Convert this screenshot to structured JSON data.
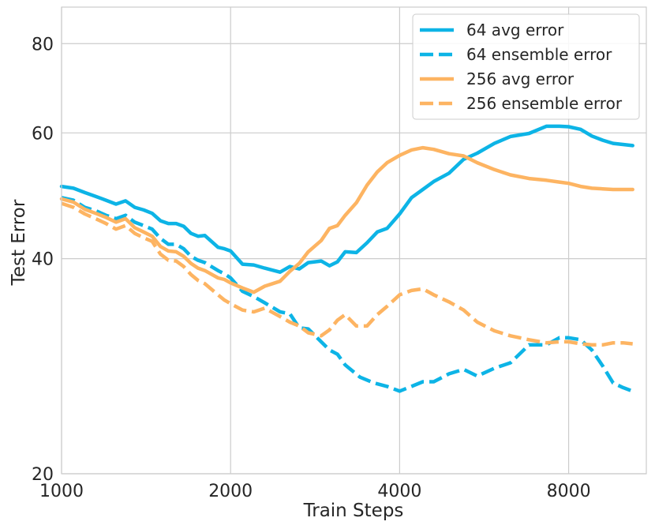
{
  "chart_data": {
    "type": "line",
    "xscale": "log",
    "yscale": "log",
    "xlabel": "Train Steps",
    "ylabel": "Test Error",
    "xlim": [
      1000,
      11000
    ],
    "ylim": [
      20,
      90
    ],
    "xticks": [
      1000,
      2000,
      4000,
      8000
    ],
    "xtick_labels": [
      "1000",
      "2000",
      "4000",
      "8000"
    ],
    "yticks": [
      20,
      40,
      60,
      80
    ],
    "ytick_labels": [
      "20",
      "40",
      "60",
      "80"
    ],
    "grid": true,
    "legend_position": "top-right",
    "series": [
      {
        "name": "64 avg error",
        "color": "#0db4e6",
        "style": "solid",
        "x": [
          1000,
          1050,
          1100,
          1150,
          1200,
          1250,
          1300,
          1350,
          1400,
          1450,
          1500,
          1550,
          1600,
          1650,
          1700,
          1750,
          1800,
          1900,
          1950,
          2000,
          2100,
          2200,
          2300,
          2450,
          2550,
          2650,
          2750,
          2900,
          3000,
          3100,
          3200,
          3350,
          3500,
          3650,
          3800,
          4000,
          4200,
          4400,
          4600,
          4900,
          5200,
          5500,
          5900,
          6300,
          6800,
          7300,
          7700,
          8000,
          8400,
          8800,
          9200,
          9600,
          10000,
          10400
        ],
        "y": [
          50.5,
          50.2,
          49.5,
          48.9,
          48.3,
          47.7,
          48.2,
          47.2,
          46.8,
          46.3,
          45.2,
          44.8,
          44.8,
          44.4,
          43.4,
          43.0,
          43.1,
          41.5,
          41.3,
          41.0,
          39.3,
          39.2,
          38.8,
          38.3,
          39.0,
          38.7,
          39.5,
          39.7,
          39.1,
          39.6,
          40.9,
          40.8,
          42.1,
          43.6,
          44.1,
          46.2,
          48.7,
          50.0,
          51.3,
          52.7,
          55.1,
          56.2,
          58.0,
          59.3,
          59.9,
          61.3,
          61.3,
          61.2,
          60.7,
          59.4,
          58.6,
          58.0,
          57.8,
          57.6
        ]
      },
      {
        "name": "64 ensemble error",
        "color": "#0db4e6",
        "style": "dashed",
        "x": [
          1000,
          1050,
          1100,
          1150,
          1200,
          1250,
          1300,
          1350,
          1400,
          1450,
          1500,
          1550,
          1600,
          1650,
          1700,
          1750,
          1800,
          1900,
          1950,
          2000,
          2100,
          2200,
          2300,
          2450,
          2550,
          2650,
          2750,
          2900,
          3000,
          3100,
          3200,
          3400,
          3600,
          3800,
          4000,
          4200,
          4400,
          4600,
          4900,
          5200,
          5500,
          5900,
          6300,
          6800,
          7300,
          7700,
          8000,
          8400,
          8800,
          9200,
          9600,
          10000,
          10400
        ],
        "y": [
          48.7,
          48.3,
          47.2,
          46.7,
          46.0,
          45.5,
          46.0,
          45.0,
          44.5,
          44.0,
          42.7,
          41.9,
          41.9,
          41.3,
          40.3,
          39.8,
          39.5,
          38.5,
          38.1,
          37.6,
          36.0,
          35.4,
          34.7,
          33.7,
          33.5,
          32.0,
          31.9,
          30.6,
          29.8,
          29.4,
          28.4,
          27.3,
          26.8,
          26.5,
          26.1,
          26.5,
          26.9,
          26.9,
          27.6,
          28.0,
          27.4,
          28.1,
          28.6,
          30.3,
          30.3,
          31.0,
          31.0,
          30.8,
          29.8,
          28.3,
          26.8,
          26.4,
          26.1
        ]
      },
      {
        "name": "256 avg error",
        "color": "#fdb462",
        "style": "solid",
        "x": [
          1000,
          1050,
          1100,
          1150,
          1200,
          1250,
          1300,
          1350,
          1400,
          1450,
          1500,
          1550,
          1600,
          1650,
          1700,
          1750,
          1800,
          1900,
          1950,
          2000,
          2100,
          2200,
          2300,
          2450,
          2550,
          2650,
          2750,
          2900,
          3000,
          3100,
          3200,
          3350,
          3500,
          3650,
          3800,
          4000,
          4200,
          4400,
          4600,
          4900,
          5200,
          5500,
          5900,
          6300,
          6800,
          7300,
          7700,
          8000,
          8400,
          8800,
          9200,
          9600,
          10000,
          10400
        ],
        "y": [
          48.5,
          48.0,
          46.9,
          46.3,
          45.7,
          45.0,
          45.5,
          44.2,
          43.6,
          43.0,
          41.6,
          41.0,
          40.9,
          40.3,
          39.4,
          38.8,
          38.5,
          37.6,
          37.4,
          37.0,
          36.4,
          35.9,
          36.6,
          37.2,
          38.4,
          39.4,
          40.9,
          42.4,
          44.1,
          44.5,
          46.0,
          47.9,
          50.7,
          52.9,
          54.5,
          55.8,
          56.8,
          57.2,
          56.9,
          56.1,
          55.7,
          54.5,
          53.3,
          52.4,
          51.8,
          51.5,
          51.2,
          51.0,
          50.5,
          50.2,
          50.1,
          50.0,
          50.0,
          50.0
        ]
      },
      {
        "name": "256 ensemble error",
        "color": "#fdb462",
        "style": "dashed",
        "x": [
          1000,
          1050,
          1100,
          1150,
          1200,
          1250,
          1300,
          1350,
          1400,
          1450,
          1500,
          1550,
          1600,
          1650,
          1700,
          1750,
          1800,
          1900,
          1950,
          2000,
          2100,
          2200,
          2300,
          2450,
          2550,
          2650,
          2750,
          2900,
          3000,
          3100,
          3200,
          3350,
          3500,
          3650,
          3800,
          4000,
          4200,
          4400,
          4600,
          4900,
          5200,
          5500,
          5900,
          6300,
          6800,
          7300,
          7700,
          8000,
          8400,
          8800,
          9200,
          9600,
          10000,
          10400
        ],
        "y": [
          47.8,
          47.2,
          46.2,
          45.5,
          44.8,
          44.0,
          44.5,
          43.4,
          42.8,
          42.3,
          40.6,
          39.8,
          39.7,
          39.0,
          38.0,
          37.3,
          36.9,
          35.6,
          35.0,
          34.6,
          33.9,
          33.7,
          34.1,
          33.2,
          32.6,
          32.2,
          31.5,
          31.2,
          31.8,
          32.8,
          33.4,
          32.2,
          32.2,
          33.4,
          34.3,
          35.6,
          36.1,
          36.3,
          35.6,
          34.8,
          33.9,
          32.6,
          31.7,
          31.2,
          30.8,
          30.5,
          30.6,
          30.6,
          30.4,
          30.3,
          30.3,
          30.5,
          30.5,
          30.4
        ]
      }
    ]
  }
}
